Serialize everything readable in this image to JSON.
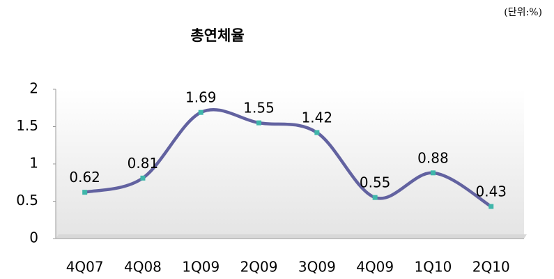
{
  "chart_data": {
    "type": "line",
    "title": "총연체율",
    "unit_note": "(단위:%)",
    "categories": [
      "4Q07",
      "4Q08",
      "1Q09",
      "2Q09",
      "3Q09",
      "4Q09",
      "1Q10",
      "2Q10"
    ],
    "values": [
      0.62,
      0.81,
      1.69,
      1.55,
      1.42,
      0.55,
      0.88,
      0.43
    ],
    "color": "#6262a0",
    "marker_color": "#3fb6aa",
    "ylim": [
      0,
      2
    ],
    "yticks": [
      0,
      0.5,
      1,
      1.5,
      2
    ],
    "grid": false
  }
}
